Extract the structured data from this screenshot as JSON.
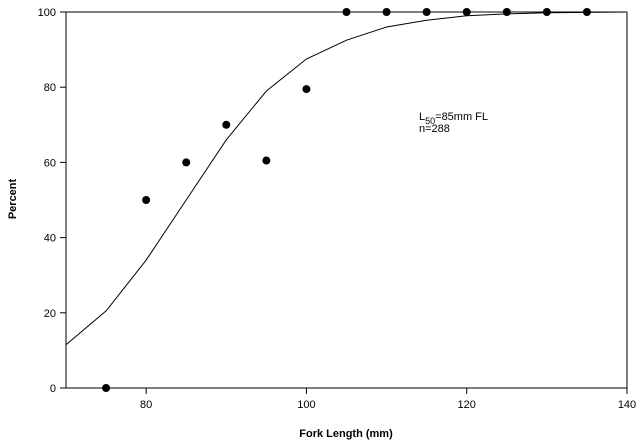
{
  "chart_data": {
    "type": "scatter",
    "xlabel": "Fork Length (mm)",
    "ylabel": "Percent",
    "xlim": [
      70,
      140
    ],
    "ylim": [
      0,
      100
    ],
    "x_ticks": [
      80,
      100,
      120,
      140
    ],
    "y_ticks": [
      0,
      20,
      40,
      60,
      80,
      100
    ],
    "grid": false,
    "series": [
      {
        "type": "scatter",
        "x": [
          75,
          80,
          85,
          90,
          95,
          100,
          105,
          110,
          115,
          120,
          125,
          130,
          135
        ],
        "y": [
          0,
          50,
          60,
          70,
          60.5,
          79.5,
          100,
          100,
          100,
          100,
          100,
          100,
          100
        ]
      },
      {
        "type": "line",
        "x": [
          70,
          75,
          80,
          85,
          90,
          95,
          100,
          105,
          110,
          115,
          120,
          125,
          130,
          135,
          140
        ],
        "y": [
          11.5,
          20.5,
          34,
          50,
          66,
          79,
          87.5,
          92.5,
          96,
          97.8,
          99,
          99.5,
          99.8,
          99.9,
          100
        ]
      }
    ],
    "annotations": {
      "l50_prefix": "L",
      "l50_subscript": "50",
      "l50_suffix": "=85mm FL",
      "n_text": "n=288"
    }
  }
}
